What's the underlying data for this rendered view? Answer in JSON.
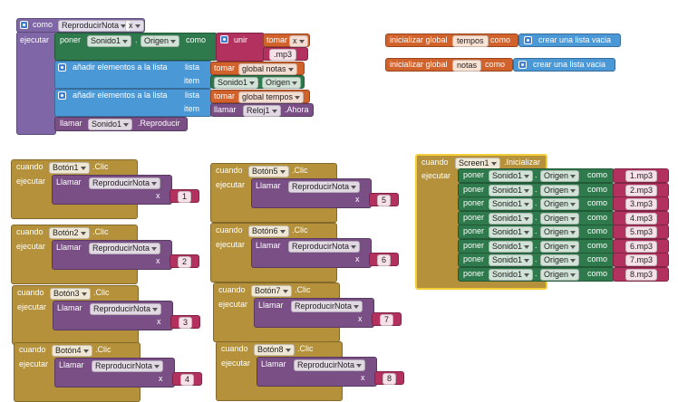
{
  "procedure": {
    "keyword": "como",
    "name": "ReproducirNota",
    "param": "x",
    "do": "ejecutar",
    "set": {
      "verb": "poner",
      "component": "Sonido1",
      "dot": ".",
      "property": "Origen",
      "to": "como",
      "join": "unir",
      "get": "tomar",
      "var": "x",
      "suffix": ".mp3"
    },
    "add_notes": {
      "label": "añadir elementos a la lista",
      "list": "lista",
      "item": "item",
      "get": "tomar",
      "var": "global notas",
      "component": "Sonido1",
      "dot": ".",
      "property": "Origen"
    },
    "add_tempos": {
      "label": "añadir elementos a la lista",
      "list": "lista",
      "item": "item",
      "get": "tomar",
      "var": "global tempos",
      "call": "llamar",
      "component": "Reloj1",
      "method": ".Ahora"
    },
    "call": {
      "verb": "llamar",
      "component": "Sonido1",
      "method": ".Reproducir"
    }
  },
  "globals": [
    {
      "label": "inicializar global",
      "name": "tempos",
      "as": "como",
      "value": "crear una lista vacia"
    },
    {
      "label": "inicializar global",
      "name": "notas",
      "as": "como",
      "value": "crear una lista vacia"
    }
  ],
  "handlers": [
    {
      "when": "cuando",
      "component": "Botón1",
      "event": ".Clic",
      "do": "ejecutar",
      "call": "Llamar",
      "procedure": "ReproducirNota",
      "arg": "x",
      "value": "1"
    },
    {
      "when": "cuando",
      "component": "Botón2",
      "event": ".Clic",
      "do": "ejecutar",
      "call": "Llamar",
      "procedure": "ReproducirNota",
      "arg": "x",
      "value": "2"
    },
    {
      "when": "cuando",
      "component": "Botón3",
      "event": ".Clic",
      "do": "ejecutar",
      "call": "Llamar",
      "procedure": "ReproducirNota",
      "arg": "x",
      "value": "3"
    },
    {
      "when": "cuando",
      "component": "Botón4",
      "event": ".Clic",
      "do": "ejecutar",
      "call": "Llamar",
      "procedure": "ReproducirNota",
      "arg": "x",
      "value": "4"
    },
    {
      "when": "cuando",
      "component": "Botón5",
      "event": ".Clic",
      "do": "ejecutar",
      "call": "Llamar",
      "procedure": "ReproducirNota",
      "arg": "x",
      "value": "5"
    },
    {
      "when": "cuando",
      "component": "Botón6",
      "event": ".Clic",
      "do": "ejecutar",
      "call": "Llamar",
      "procedure": "ReproducirNota",
      "arg": "x",
      "value": "6"
    },
    {
      "when": "cuando",
      "component": "Botón7",
      "event": ".Clic",
      "do": "ejecutar",
      "call": "Llamar",
      "procedure": "ReproducirNota",
      "arg": "x",
      "value": "7"
    },
    {
      "when": "cuando",
      "component": "Botón8",
      "event": ".Clic",
      "do": "ejecutar",
      "call": "Llamar",
      "procedure": "ReproducirNota",
      "arg": "x",
      "value": "8"
    }
  ],
  "screen": {
    "when": "cuando",
    "component": "Screen1",
    "event": ".Inicializar",
    "do": "ejecutar",
    "verb": "poner",
    "target": "Sonido1",
    "dot": ".",
    "property": "Origen",
    "to": "como",
    "values": [
      "1.mp3",
      "2.mp3",
      "3.mp3",
      "4.mp3",
      "5.mp3",
      "6.mp3",
      "7.mp3",
      "8.mp3"
    ]
  }
}
